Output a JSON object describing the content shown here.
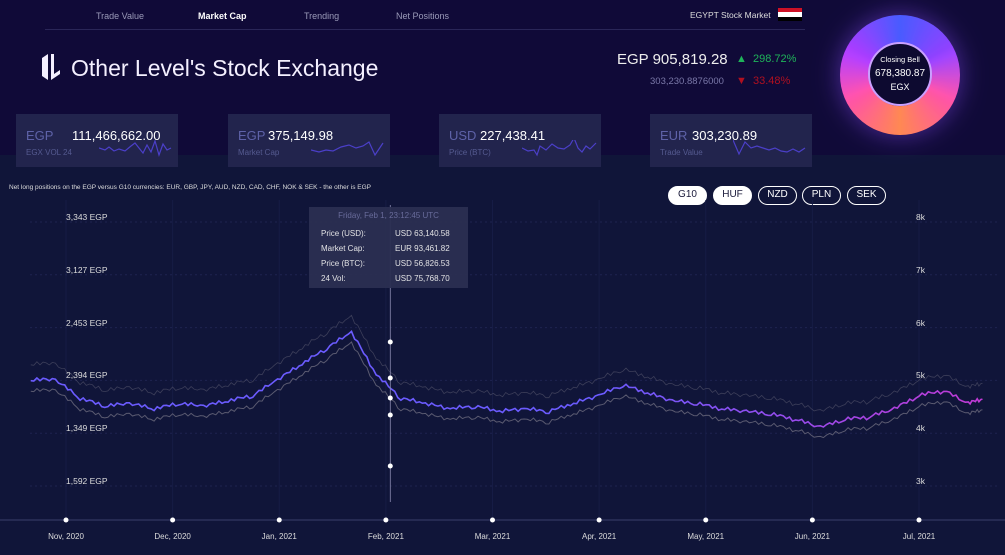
{
  "nav": {
    "items": [
      {
        "label": "Trade Value",
        "active": false
      },
      {
        "label": "Market Cap",
        "active": true
      },
      {
        "label": "Trending",
        "active": false
      },
      {
        "label": "Net Positions",
        "active": false
      }
    ],
    "market_label": "EGYPT Stock Market",
    "flag_icon": "egypt-flag-icon"
  },
  "header": {
    "title": "Other Level's Stock Exchange",
    "logo_icon": "other-level-logo"
  },
  "summary": {
    "main_value": "EGP 905,819.28",
    "main_change": "298.72%",
    "main_direction": "up",
    "secondary_value": "303,230.8876000",
    "secondary_change": "33.48%",
    "secondary_direction": "down",
    "up_color": "#1fb35a",
    "down_color": "#b01020"
  },
  "closing_bell": {
    "label": "Closing Bell",
    "value": "678,380.87",
    "unit": "EGX"
  },
  "cards": [
    {
      "currency": "EGP",
      "value": "111,466,662.00",
      "label": "EGX VOL 24"
    },
    {
      "currency": "EGP",
      "value": "375,149.98",
      "label": "Market Cap"
    },
    {
      "currency": "USD",
      "value": "227,438.41",
      "label": "Price (BTC)"
    },
    {
      "currency": "EUR",
      "value": "303,230.89",
      "label": "Trade Value"
    }
  ],
  "description": "Net long positions on the EGP versus G10 currencies: EUR, GBP, JPY, AUD, NZD, CAD, CHF, NOK & SEK - the other is EGP",
  "filters": [
    {
      "label": "G10",
      "selected": true
    },
    {
      "label": "HUF",
      "selected": true
    },
    {
      "label": "NZD",
      "selected": false
    },
    {
      "label": "PLN",
      "selected": false
    },
    {
      "label": "SEK",
      "selected": false
    }
  ],
  "tooltip": {
    "header": "Friday, Feb 1, 23:12:45 UTC",
    "rows": [
      {
        "key": "Price (USD):",
        "value": "USD 63,140.58"
      },
      {
        "key": "Market Cap:",
        "value": "EUR 93,461.82"
      },
      {
        "key": "Price (BTC):",
        "value": "USD 56,826.53"
      },
      {
        "key": "24 Vol:",
        "value": "USD 75,768.70"
      }
    ]
  },
  "chart_data": {
    "type": "line",
    "left_tick_labels": [
      "3,343 EGP",
      "3,127 EGP",
      "2,453 EGP",
      "2,394 EGP",
      "1,349 EGP",
      "1,592 EGP"
    ],
    "right_tick_labels": [
      "8k",
      "7k",
      "6k",
      "5k",
      "4k",
      "3k"
    ],
    "ylim": [
      3000,
      8000
    ],
    "x_tick_labels": [
      "Nov, 2020",
      "Dec, 2020",
      "Jan, 2021",
      "Feb, 2021",
      "Mar, 2021",
      "Apr, 2021",
      "May, 2021",
      "Jun, 2021",
      "Jul, 2021"
    ],
    "x": [
      "2020-10-22",
      "2020-10-29",
      "2020-11-05",
      "2020-11-12",
      "2020-11-19",
      "2020-11-26",
      "2020-12-03",
      "2020-12-10",
      "2020-12-17",
      "2020-12-24",
      "2020-12-31",
      "2021-01-07",
      "2021-01-14",
      "2021-01-21",
      "2021-01-28",
      "2021-02-04",
      "2021-02-11",
      "2021-02-18",
      "2021-02-25",
      "2021-03-04",
      "2021-03-11",
      "2021-03-18",
      "2021-03-25",
      "2021-04-01",
      "2021-04-08",
      "2021-04-15",
      "2021-04-22",
      "2021-04-29",
      "2021-05-06",
      "2021-05-13",
      "2021-05-20",
      "2021-05-27",
      "2021-06-03",
      "2021-06-10",
      "2021-06-17",
      "2021-06-24",
      "2021-07-01",
      "2021-07-08",
      "2021-07-15",
      "2021-07-19"
    ],
    "series": [
      {
        "values": [
          4900,
          4900,
          4550,
          4400,
          4450,
          4350,
          4450,
          4400,
          4500,
          4600,
          4900,
          5200,
          5500,
          5800,
          5000,
          4550,
          4450,
          4350,
          4400,
          4300,
          4350,
          4300,
          4450,
          4600,
          4800,
          4650,
          4500,
          4450,
          4350,
          4300,
          4250,
          4150,
          4000,
          4150,
          4200,
          4350,
          4600,
          4700,
          4450,
          4550
        ]
      }
    ],
    "colors": {
      "line_start": "#6b5bff",
      "line_end": "#c23ad6",
      "band": "#5a5a70"
    },
    "crosshair_date": "2021-02-01",
    "grid": true
  }
}
